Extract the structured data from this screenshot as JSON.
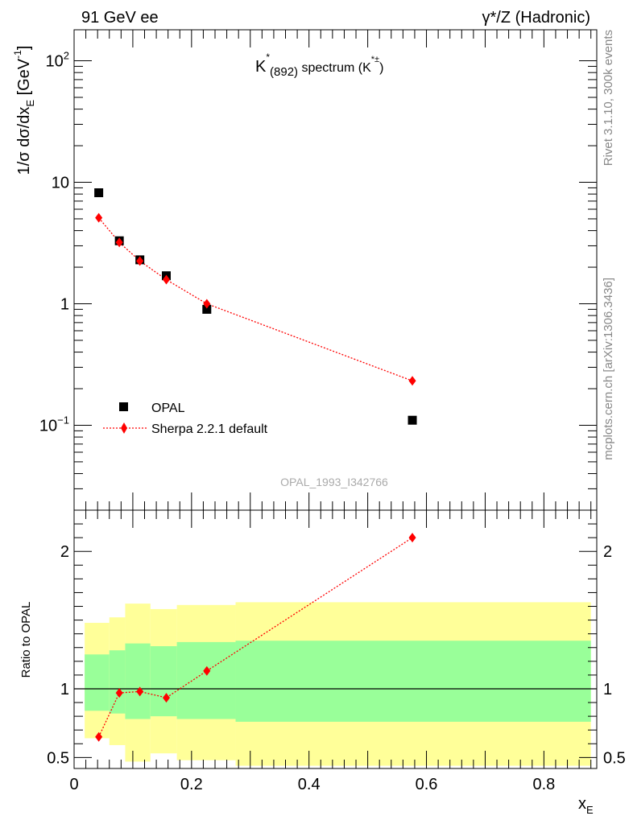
{
  "header": {
    "left_label": "91 GeV ee",
    "right_label": "γ*/Z (Hadronic)"
  },
  "side_labels": {
    "top": "Rivet 3.1.10,  300k events",
    "bottom": "mcplots.cern.ch [arXiv:1306.3436]"
  },
  "chart_data": [
    {
      "type": "scatter",
      "title_main": "K",
      "title_sup": "*",
      "title_sub": "(892)",
      "title_rest": " spectrum (K",
      "title_rest_sup": "*±",
      "title_close": ")",
      "ylabel": "1/σ dσ/dx",
      "ylabel_sub": "E",
      "ylabel_unit": " [GeV",
      "ylabel_unit_sup": "-1",
      "ylabel_close": "]",
      "yscale": "log",
      "ylim": [
        0.02,
        180
      ],
      "xlim": [
        0,
        0.89
      ],
      "yticks": [
        {
          "value": 0.1,
          "base": "10",
          "exp": "−1"
        },
        {
          "value": 1,
          "base": "1",
          "exp": ""
        },
        {
          "value": 10,
          "base": "10",
          "exp": ""
        },
        {
          "value": 100,
          "base": "10",
          "exp": "2"
        }
      ],
      "watermark": "OPAL_1993_I342766",
      "legend_position": "bottom-left",
      "series": [
        {
          "name": "OPAL",
          "color": "#000000",
          "marker": "square",
          "x": [
            0.042,
            0.077,
            0.112,
            0.157,
            0.226,
            0.576
          ],
          "y": [
            8.2,
            3.3,
            2.3,
            1.7,
            0.9,
            0.11
          ]
        },
        {
          "name": "Sherpa 2.2.1 default",
          "color": "#ff0000",
          "marker": "diamond",
          "line": "dotted",
          "x": [
            0.042,
            0.077,
            0.112,
            0.157,
            0.226,
            0.576
          ],
          "y": [
            5.1,
            3.2,
            2.25,
            1.58,
            1.0,
            0.232
          ]
        }
      ]
    },
    {
      "type": "scatter",
      "ylabel": "Ratio to OPAL",
      "xlabel": "x",
      "xlabel_sub": "E",
      "ylim": [
        0.42,
        2.3
      ],
      "xlim": [
        0,
        0.89
      ],
      "yticks": [
        0.5,
        1,
        2
      ],
      "ytick_labels": [
        "0.5",
        "1",
        "2"
      ],
      "xticks": [
        0,
        0.2,
        0.4,
        0.6,
        0.8
      ],
      "xtick_labels": [
        "0",
        "0.2",
        "0.4",
        "0.6",
        "0.8"
      ],
      "colors": {
        "outer_band": "#ffff99",
        "inner_band": "#99ff99",
        "reference": "#000000",
        "mc": "#ff0000"
      },
      "bands": [
        {
          "x0": 0.018,
          "x1": 0.06,
          "inner": [
            0.84,
            1.25
          ],
          "outer": [
            0.64,
            1.48
          ]
        },
        {
          "x0": 0.06,
          "x1": 0.087,
          "inner": [
            0.82,
            1.28
          ],
          "outer": [
            0.59,
            1.52
          ]
        },
        {
          "x0": 0.087,
          "x1": 0.13,
          "inner": [
            0.78,
            1.33
          ],
          "outer": [
            0.47,
            1.62
          ]
        },
        {
          "x0": 0.13,
          "x1": 0.175,
          "inner": [
            0.8,
            1.31
          ],
          "outer": [
            0.53,
            1.58
          ]
        },
        {
          "x0": 0.175,
          "x1": 0.275,
          "inner": [
            0.78,
            1.34
          ],
          "outer": [
            0.48,
            1.61
          ]
        },
        {
          "x0": 0.275,
          "x1": 0.88,
          "inner": [
            0.76,
            1.35
          ],
          "outer": [
            0.44,
            1.63
          ]
        }
      ],
      "series": [
        {
          "name": "Sherpa 2.2.1 default",
          "x": [
            0.042,
            0.077,
            0.112,
            0.157,
            0.226,
            0.576
          ],
          "y": [
            0.65,
            0.97,
            0.98,
            0.935,
            1.13,
            2.1
          ]
        }
      ]
    }
  ]
}
